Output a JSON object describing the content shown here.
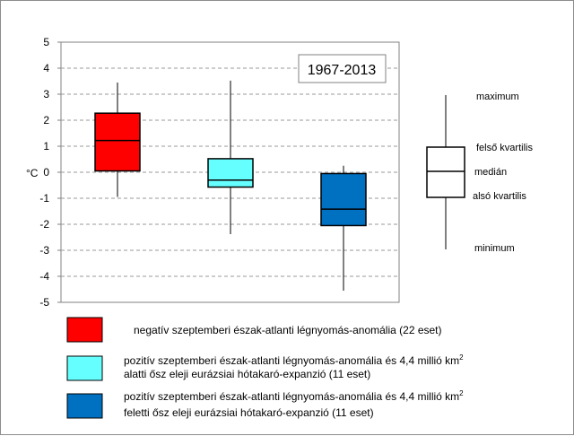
{
  "chart_data": {
    "type": "boxplot",
    "title": "1967-2013",
    "ylabel": "°C",
    "ylim": [
      -5,
      5
    ],
    "yticks": [
      "5",
      "4",
      "3",
      "2",
      "1",
      "0",
      "-1",
      "-2",
      "-3",
      "-4",
      "-5"
    ],
    "grid": true,
    "series": [
      {
        "name": "negatív szeptemberi észak-atlanti légnyomás-anomália (22 eset)",
        "color": "#ff0000",
        "min": -0.95,
        "q1": 0.05,
        "median": 1.22,
        "q3": 2.27,
        "max": 3.45
      },
      {
        "name": "pozitív szeptemberi észak-atlanti légnyomás-anomália és 4,4 millió km² alatti ősz eleji eurázsiai hótakaró-expanzió (11 eset)",
        "color": "#66ffff",
        "min": -2.38,
        "q1": -0.57,
        "median": -0.3,
        "q3": 0.52,
        "max": 3.52
      },
      {
        "name": "pozitív szeptemberi észak-atlanti légnyomás-anomália és 4,4 millió km² feletti ősz eleji eurázsiai hótakaró-expanzió (11 eset)",
        "color": "#0070c0",
        "min": -4.55,
        "q1": -2.05,
        "median": -1.42,
        "q3": -0.05,
        "max": 0.25
      }
    ]
  },
  "explanation": {
    "maximum": "maximum",
    "upper_quartile": "felső kvartilis",
    "median": "medián",
    "lower_quartile": "alsó kvartilis",
    "minimum": "minimum"
  },
  "legend": [
    {
      "line1": "negatív szeptemberi észak-atlanti légnyomás-anomália (22 eset)",
      "line2": ""
    },
    {
      "line1": "pozitív szeptemberi észak-atlanti légnyomás-anomália és 4,4 millió km",
      "sup": "2",
      "line2": "alatti  ősz eleji eurázsiai hótakaró-expanzió (11 eset)"
    },
    {
      "line1": "pozitív szeptemberi észak-atlanti légnyomás-anomália és 4,4 millió km",
      "sup": "2",
      "line2": "feletti  ősz eleji eurázsiai hótakaró-expanzió (11 eset)"
    }
  ]
}
